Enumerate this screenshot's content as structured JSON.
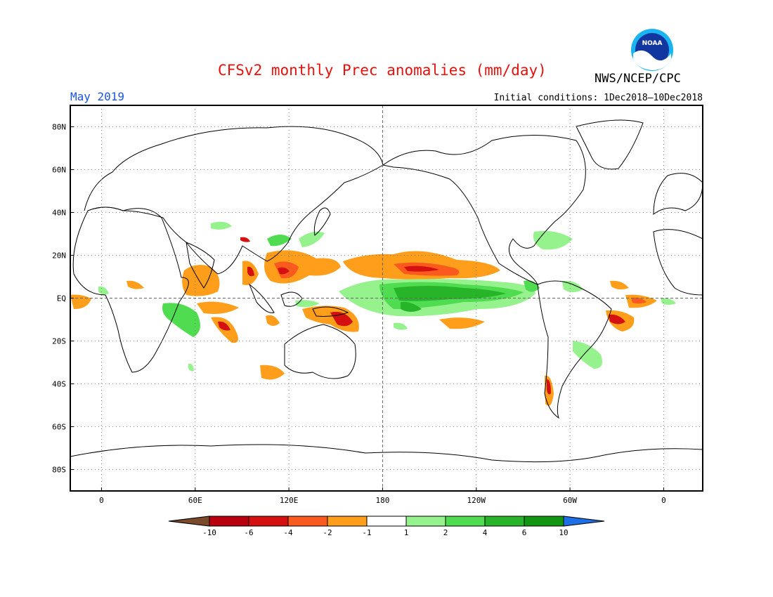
{
  "header": {
    "title": "CFSv2 monthly Prec anomalies (mm/day)",
    "org": "NWS/NCEP/CPC",
    "logo_text": "NOAA",
    "month": "May 2019",
    "initial_conditions": "Initial conditions: 1Dec2018–10Dec2018"
  },
  "map": {
    "lat_labels": [
      "80N",
      "60N",
      "40N",
      "20N",
      "EQ",
      "20S",
      "40S",
      "60S",
      "80S"
    ],
    "lat_values": [
      80,
      60,
      40,
      20,
      0,
      -20,
      -40,
      -60,
      -80
    ],
    "lon_labels": [
      "0",
      "60E",
      "120E",
      "180",
      "120W",
      "60W",
      "0"
    ],
    "lon_values": [
      0,
      60,
      120,
      180,
      240,
      300,
      360
    ],
    "lon_range": [
      -20,
      385
    ],
    "lat_range": [
      -90,
      90
    ],
    "grid": "dotted",
    "reference_lines": [
      "EQ",
      "180"
    ]
  },
  "colorbar": {
    "labels": [
      "-10",
      "-6",
      "-4",
      "-2",
      "-1",
      "1",
      "2",
      "4",
      "6",
      "10"
    ],
    "colors": [
      "#7a4a2b",
      "#b8000f",
      "#d41010",
      "#fa5a1e",
      "#ff9e1a",
      "#ffffff",
      "#96f28c",
      "#50dc50",
      "#28b428",
      "#129612",
      "#1e6ee6"
    ]
  },
  "colors": {
    "title": "#e8120c",
    "month": "#1a55e6"
  }
}
